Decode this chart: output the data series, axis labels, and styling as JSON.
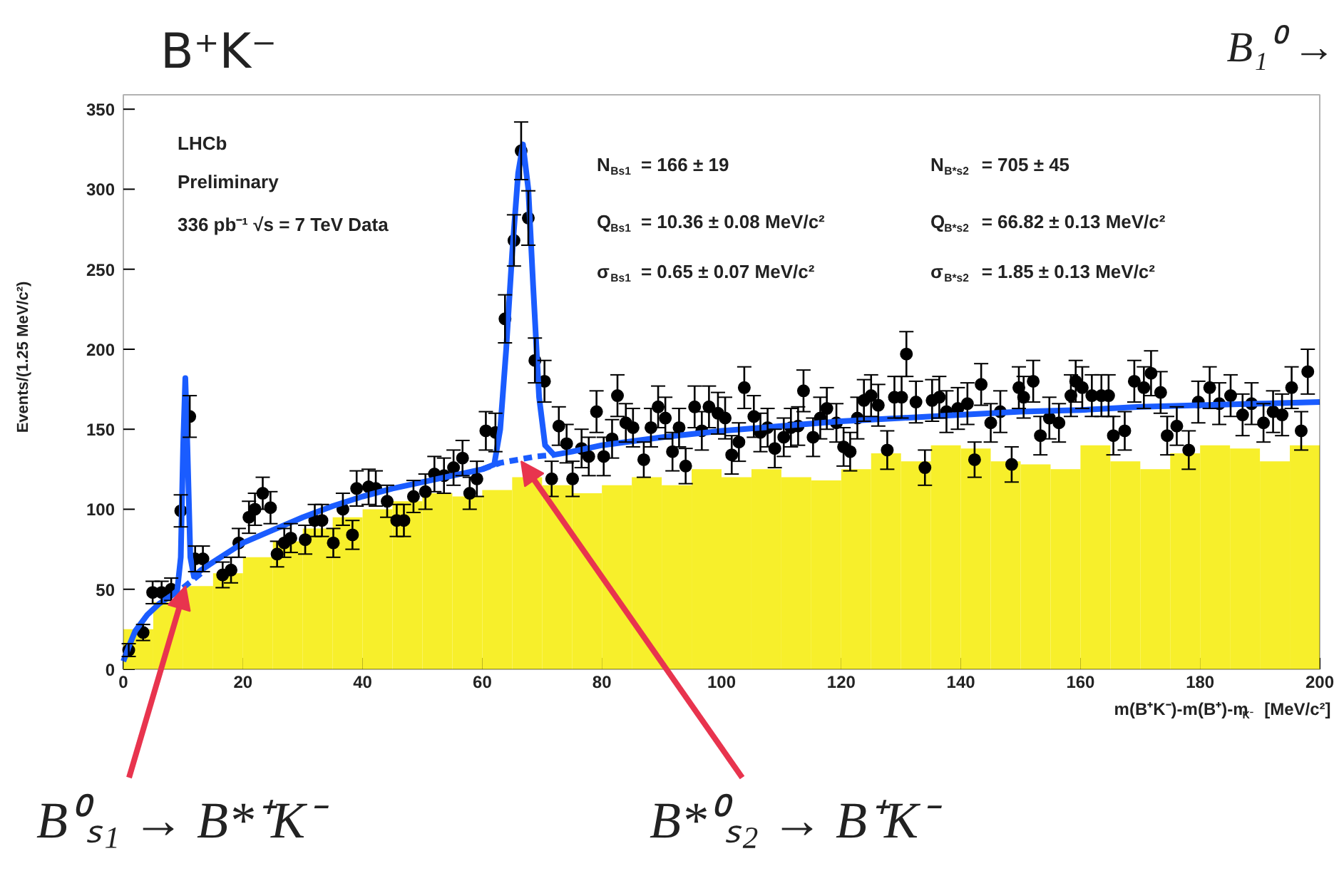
{
  "chart_data": {
    "type": "scatter",
    "title": "B⁺K⁻",
    "xlabel": "m(B⁺K⁻)-m(B⁺)-m$_{K⁻}$ [MeV/c²]",
    "ylabel": "Events/(1.25 MeV/c²)",
    "xlim": [
      0,
      200
    ],
    "ylim": [
      0,
      359
    ],
    "xticks": [
      0,
      20,
      40,
      60,
      80,
      100,
      120,
      140,
      160,
      180,
      200
    ],
    "yticks": [
      0,
      50,
      100,
      150,
      200,
      250,
      300,
      350
    ],
    "grid": false,
    "series": [
      {
        "type": "histogram",
        "color": "#f7ef2b",
        "bins": [
          0,
          5,
          10,
          15,
          20,
          25,
          30,
          35,
          40,
          45,
          50,
          55,
          60,
          65,
          70,
          75,
          80,
          85,
          90,
          95,
          100,
          105,
          110,
          115,
          120,
          125,
          130,
          135,
          140,
          145,
          150,
          155,
          160,
          165,
          170,
          175,
          180,
          185,
          190,
          195,
          200
        ],
        "values": [
          25,
          42,
          52,
          60,
          70,
          80,
          88,
          95,
          100,
          105,
          110,
          108,
          112,
          120,
          115,
          110,
          115,
          120,
          115,
          125,
          120,
          125,
          120,
          118,
          125,
          135,
          130,
          140,
          138,
          130,
          128,
          125,
          140,
          130,
          125,
          135,
          140,
          138,
          130,
          140
        ]
      },
      {
        "marker": "circle",
        "color": "#000000",
        "x": [
          0.9,
          3.3,
          4.9,
          6.4,
          8,
          9.6,
          11.1,
          12,
          13.3,
          16.6,
          18,
          19.3,
          21,
          22,
          23.3,
          24.6,
          25.7,
          26.9,
          28,
          30.4,
          32,
          33.2,
          35.1,
          36.7,
          38.3,
          39,
          41,
          42.2,
          44.1,
          45.7,
          46.9,
          48.5,
          50.5,
          52,
          53.6,
          55.2,
          56.7,
          57.9,
          59.1,
          60.6,
          62.2,
          63.8,
          65.3,
          66.5,
          67.7,
          68.8,
          70.4,
          71.6,
          72.8,
          74.1,
          75.1,
          76.6,
          77.8,
          79.1,
          80.3,
          81.7,
          82.6,
          84,
          85.2,
          87,
          88.2,
          89.4,
          90.6,
          91.8,
          92.9,
          94,
          95.5,
          96.7,
          97.9,
          99.4,
          100.6,
          101.7,
          102.9,
          103.8,
          105.4,
          106.5,
          107.7,
          108.9,
          110.4,
          111.6,
          112.8,
          113.7,
          115.3,
          116.5,
          117.6,
          119.2,
          120.4,
          121.5,
          122.7,
          123.8,
          125,
          126.2,
          127.7,
          128.9,
          130.1,
          130.9,
          132.5,
          134,
          135.2,
          136.4,
          137.6,
          139.5,
          141.1,
          142.3,
          143.4,
          145,
          146.6,
          148.5,
          149.7,
          150.5,
          152.1,
          153.3,
          154.8,
          156.4,
          158.4,
          159.2,
          160.3,
          161.9,
          163.5,
          164.7,
          165.5,
          167.4,
          169,
          170.6,
          171.8,
          173.4,
          174.5,
          176.1,
          178.1,
          179.7,
          181.6,
          183.2,
          185.1,
          187.1,
          188.6,
          190.6,
          192.2,
          193.7,
          195.3,
          196.9,
          198
        ],
        "values": [
          12,
          23,
          48,
          48,
          50,
          99,
          158,
          69,
          69,
          59,
          62,
          79,
          95,
          100,
          110,
          101,
          72,
          79,
          82,
          81,
          93,
          93,
          79,
          100,
          84,
          113,
          114,
          113,
          105,
          93,
          93,
          108,
          111,
          122,
          121,
          126,
          132,
          110,
          119,
          149,
          148,
          219,
          268,
          324,
          282,
          193,
          180,
          119,
          152,
          141,
          119,
          138,
          133,
          161,
          133,
          144,
          171,
          154,
          151,
          131,
          151,
          164,
          157,
          136,
          151,
          127,
          164,
          149,
          164,
          160,
          157,
          134,
          142,
          176,
          158,
          148,
          151,
          138,
          145,
          151,
          152,
          174,
          145,
          157,
          163,
          154,
          139,
          136,
          157,
          168,
          171,
          165,
          137,
          170,
          170,
          197,
          167,
          126,
          168,
          170,
          161,
          163,
          166,
          131,
          178,
          154,
          161,
          128,
          176,
          170,
          180,
          146,
          157,
          154,
          171,
          180,
          176,
          171,
          171,
          171,
          146,
          149,
          180,
          176,
          185,
          173,
          146,
          152,
          137,
          167,
          176,
          166,
          171,
          159,
          166,
          154,
          161,
          159,
          176,
          149,
          186
        ],
        "errors": [
          4,
          5,
          7,
          7,
          7,
          10,
          13,
          8,
          8,
          8,
          8,
          9,
          10,
          10,
          10,
          10,
          8,
          9,
          9,
          9,
          10,
          10,
          9,
          10,
          9,
          11,
          11,
          11,
          10,
          10,
          10,
          10,
          11,
          11,
          11,
          11,
          11,
          10,
          11,
          12,
          12,
          15,
          16,
          18,
          17,
          14,
          13,
          11,
          12,
          12,
          11,
          12,
          12,
          13,
          12,
          12,
          13,
          12,
          12,
          11,
          12,
          13,
          13,
          12,
          12,
          11,
          13,
          12,
          13,
          13,
          13,
          12,
          12,
          13,
          13,
          12,
          12,
          12,
          12,
          12,
          12,
          13,
          12,
          13,
          13,
          12,
          12,
          12,
          13,
          13,
          13,
          13,
          12,
          13,
          13,
          14,
          13,
          11,
          13,
          13,
          13,
          13,
          13,
          11,
          13,
          12,
          13,
          11,
          13,
          13,
          13,
          12,
          13,
          12,
          13,
          13,
          13,
          13,
          13,
          13,
          12,
          12,
          13,
          13,
          14,
          13,
          12,
          12,
          12,
          13,
          13,
          13,
          13,
          13,
          13,
          12,
          13,
          13,
          13,
          12,
          14
        ]
      },
      {
        "type": "line",
        "color": "#1a5cff",
        "line_style": "solid",
        "x": [
          0,
          1,
          2,
          4,
          6,
          8,
          9,
          9.6,
          10,
          10.36,
          10.7,
          11.2,
          11.8,
          13,
          15,
          20,
          25,
          30,
          35,
          40,
          45,
          50,
          55,
          60,
          62,
          63,
          64,
          65,
          66,
          66.8,
          67.7,
          68.5,
          69.5,
          70.5,
          72,
          75,
          80,
          90,
          100,
          110,
          120,
          130,
          140,
          150,
          160,
          170,
          180,
          190,
          200
        ],
        "values": [
          5,
          15,
          24,
          34,
          41,
          46,
          49,
          70,
          140,
          182,
          140,
          70,
          58,
          62,
          67,
          79,
          87,
          95,
          102,
          108,
          113,
          117,
          121,
          125,
          128,
          150,
          200,
          260,
          310,
          328,
          300,
          240,
          170,
          140,
          134,
          136,
          140,
          145,
          149,
          152,
          155,
          157,
          159,
          161,
          162,
          164,
          165,
          166,
          167
        ]
      },
      {
        "type": "line",
        "color": "#1a5cff",
        "line_style": "dashed",
        "x": [
          8,
          10,
          12,
          13
        ],
        "values": [
          46,
          51,
          57,
          60
        ]
      },
      {
        "type": "line",
        "color": "#1a5cff",
        "line_style": "dashed",
        "x": [
          60,
          63,
          66,
          69,
          72
        ],
        "values": [
          125,
          129,
          131,
          133,
          134
        ]
      }
    ],
    "annotations": [
      "LHCb",
      "Preliminary",
      "336 pb⁻¹ √s = 7 TeV Data",
      "N$_{Bs1}$ = 166 ± 19",
      "Q$_{Bs1}$ = 10.36 ± 0.08 MeV/c²",
      "σ$_{Bs1}$ = 0.65 ± 0.07 MeV/c²",
      "N$_{B*s2}$ = 705 ± 45",
      "Q$_{B*s2}$ = 66.82 ± 0.13 MeV/c²",
      "σ$_{B*s2}$ = 1.85 ± 0.13 MeV/c²",
      "B₁⁰ →",
      {
        "text": "B⁰ₛ₁ → B*⁺K⁻",
        "x": 10.4,
        "y": 52
      },
      {
        "text": "B*⁰ₛ₂ → B⁺K⁻",
        "x": 66.5,
        "y": 130
      }
    ]
  }
}
